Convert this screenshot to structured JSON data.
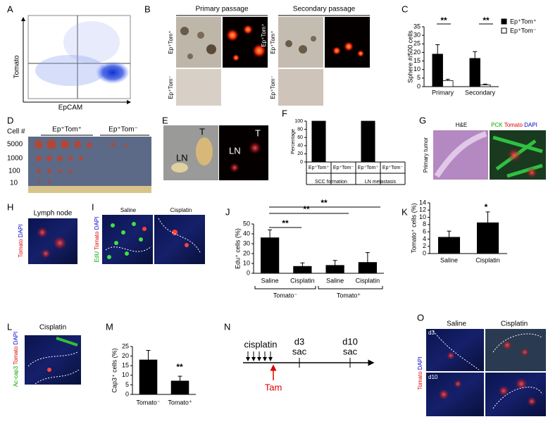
{
  "panels": {
    "a": {
      "letter": "A",
      "y_label": "Tomato",
      "x_label": "EpCAM"
    },
    "b": {
      "letter": "B",
      "columns": [
        "Primary passage",
        "Secondary passage"
      ],
      "rows": [
        "Ep⁺Tom⁺",
        "Ep⁺Tom⁻"
      ]
    },
    "d": {
      "letter": "D",
      "row_header": "Cell #",
      "columns": [
        "Ep⁺Tom⁺",
        "Ep⁺Tom⁻"
      ],
      "rows": [
        "5000",
        "1000",
        "100",
        "10"
      ]
    },
    "e": {
      "letter": "E",
      "labels": [
        "LN",
        "T",
        "LN",
        "T"
      ]
    },
    "g": {
      "letter": "G",
      "column": "H&E",
      "stain": [
        "PCK",
        "Tomato",
        "DAPI"
      ],
      "row": "Primary tumor"
    },
    "h": {
      "letter": "H",
      "title": "Lymph node",
      "stain": [
        "Tomato",
        "DAPI"
      ]
    },
    "i": {
      "letter": "I",
      "columns": [
        "Saline",
        "Cisplatin"
      ],
      "stain": [
        "EdU",
        "Tomato",
        "DAPI"
      ]
    },
    "l": {
      "letter": "L",
      "title": "Cisplatin",
      "stain": [
        "Ac-cap3",
        "Tomato",
        "DAPI"
      ]
    },
    "n": {
      "letter": "N",
      "drug": "cisplatin",
      "days": [
        "d3",
        "d10"
      ],
      "events": [
        "sac",
        "sac"
      ],
      "marker": "Tam"
    },
    "o": {
      "letter": "O",
      "columns": [
        "Saline",
        "Cisplatin"
      ],
      "rows": [
        "d3",
        "d10"
      ],
      "stain": [
        "Tomato",
        "DAPI"
      ]
    }
  },
  "chart_data": [
    {
      "panel": "C",
      "type": "bar",
      "y_label": "Sphere #/500 cells",
      "categories": [
        "Primary",
        "Secondary"
      ],
      "series": [
        {
          "name": "Ep⁺Tom⁺",
          "color": "#000000",
          "values": [
            19,
            16.5
          ],
          "errors": [
            5.5,
            4
          ]
        },
        {
          "name": "Ep⁺Tom⁻",
          "color": "#ffffff",
          "values": [
            3.5,
            1
          ],
          "errors": [
            0.8,
            0.5
          ]
        }
      ],
      "ylim": [
        0,
        35
      ],
      "yticks": [
        0,
        5,
        10,
        15,
        20,
        25,
        30,
        35
      ],
      "annotations": [
        "**",
        "**"
      ]
    },
    {
      "panel": "F",
      "type": "bar",
      "y_label": "Percentage",
      "categories": [
        "Ep⁺Tom⁺",
        "Ep⁺Tom⁻",
        "Ep⁺Tom⁺",
        "Ep⁺Tom⁻"
      ],
      "groups": [
        "SCC formation",
        "LN metastasis"
      ],
      "series": [
        {
          "color": "#000000",
          "values": [
            100,
            0,
            100,
            0
          ]
        }
      ],
      "ylim": [
        0,
        100
      ],
      "yticks": [
        0,
        20,
        40,
        60,
        80,
        100
      ]
    },
    {
      "panel": "J",
      "type": "bar",
      "y_label": "Edu⁺ cells (%)",
      "categories": [
        "Saline",
        "Cisplatin",
        "Saline",
        "Cisplatin"
      ],
      "groups": [
        "Tomato⁻",
        "Tomato⁺"
      ],
      "series": [
        {
          "color": "#000000",
          "values": [
            36,
            7,
            8,
            11
          ],
          "errors": [
            8,
            3.5,
            5,
            10
          ]
        }
      ],
      "ylim": [
        0,
        50
      ],
      "yticks": [
        0,
        10,
        20,
        30,
        40,
        50
      ],
      "annotations": [
        "**",
        "**",
        "**"
      ]
    },
    {
      "panel": "K",
      "type": "bar",
      "y_label": "Tomato⁺ cells (%)",
      "categories": [
        "Saline",
        "Cisplatin"
      ],
      "series": [
        {
          "color": "#000000",
          "values": [
            4.5,
            8.5
          ],
          "errors": [
            1.7,
            3
          ]
        }
      ],
      "ylim": [
        0,
        14
      ],
      "yticks": [
        0,
        2,
        4,
        6,
        8,
        10,
        12,
        14
      ],
      "annotations": [
        "*"
      ]
    },
    {
      "panel": "M",
      "type": "bar",
      "y_label": "Cap3⁺ cells (%)",
      "categories": [
        "Tomato⁻",
        "Tomato⁺"
      ],
      "series": [
        {
          "color": "#000000",
          "values": [
            18,
            7
          ],
          "errors": [
            5,
            2.5
          ]
        }
      ],
      "ylim": [
        0,
        25
      ],
      "yticks": [
        0,
        5,
        10,
        15,
        20,
        25
      ],
      "annotations": [
        "**"
      ]
    }
  ]
}
